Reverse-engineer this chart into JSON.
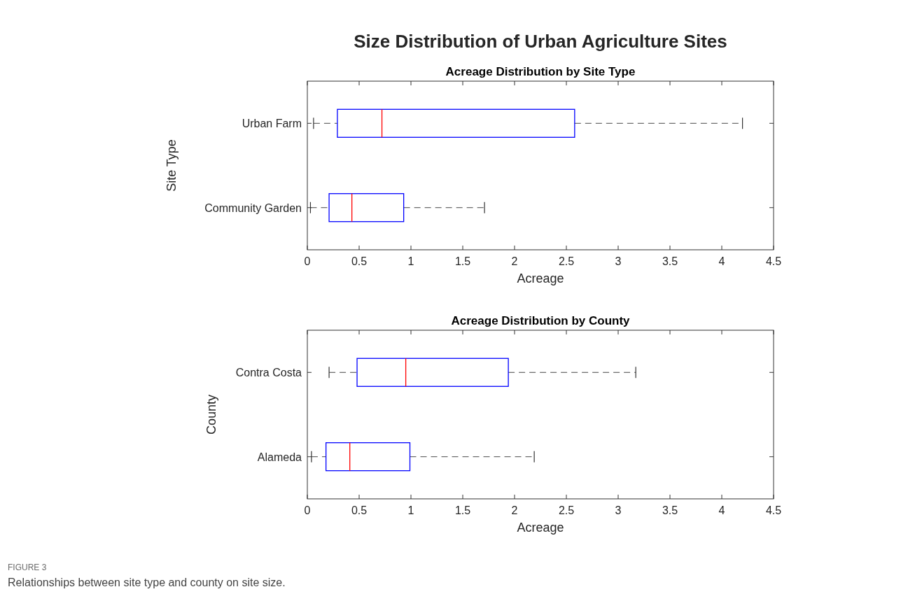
{
  "chart_data": [
    {
      "type": "box",
      "title": "Acreage Distribution by Site Type",
      "orientation": "horizontal",
      "xlabel": "Acreage",
      "ylabel": "Site Type",
      "categories": [
        "Urban Farm",
        "Community Garden"
      ],
      "xlim": [
        0,
        4.5
      ],
      "xticks": [
        0,
        0.5,
        1,
        1.5,
        2,
        2.5,
        3,
        3.5,
        4,
        4.5
      ],
      "grid": false,
      "color": "#0000ff",
      "annotations": [
        "Size Distribution of Urban Agriculture Sites"
      ],
      "boxes": [
        {
          "low": 0.06,
          "q1": 0.29,
          "median": 0.72,
          "q3": 2.58,
          "high": 4.2
        },
        {
          "low": 0.03,
          "q1": 0.21,
          "median": 0.43,
          "q3": 0.93,
          "high": 1.71
        }
      ]
    },
    {
      "type": "box",
      "title": "Acreage Distribution by County",
      "orientation": "horizontal",
      "xlabel": "Acreage",
      "ylabel": "County",
      "categories": [
        "Contra Costa",
        "Alameda"
      ],
      "xlim": [
        0,
        4.5
      ],
      "xticks": [
        0,
        0.5,
        1,
        1.5,
        2,
        2.5,
        3,
        3.5,
        4,
        4.5
      ],
      "grid": false,
      "color": "#0000ff",
      "annotations": [
        "FIGURE 3",
        "Relationships between site type and county on site size."
      ],
      "boxes": [
        {
          "low": 0.21,
          "q1": 0.48,
          "median": 0.95,
          "q3": 1.94,
          "high": 3.17
        },
        {
          "low": 0.04,
          "q1": 0.18,
          "median": 0.41,
          "q3": 0.99,
          "high": 2.19
        }
      ]
    }
  ]
}
